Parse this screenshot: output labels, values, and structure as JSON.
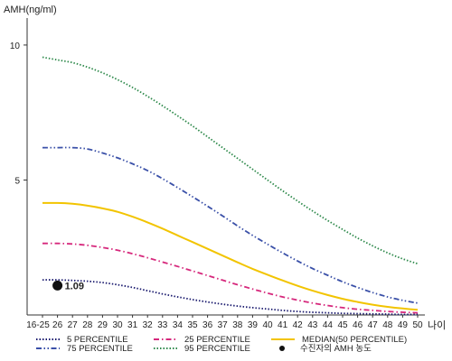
{
  "chart_data": {
    "type": "line",
    "title": "",
    "ylabel": "AMH(ng/ml)",
    "xlabel": "나이",
    "categories": [
      "16-25",
      "26",
      "27",
      "28",
      "29",
      "30",
      "31",
      "32",
      "33",
      "34",
      "35",
      "36",
      "37",
      "38",
      "39",
      "40",
      "41",
      "42",
      "43",
      "44",
      "45",
      "46",
      "47",
      "48",
      "49",
      "50"
    ],
    "ylim": [
      0,
      11
    ],
    "yticks": [
      5,
      10
    ],
    "grid": false,
    "legend_position": "bottom",
    "series": [
      {
        "name": "5 PERCENTILE",
        "color": "#1a1a6e",
        "dash": "dotted",
        "values": [
          1.3,
          1.3,
          1.28,
          1.25,
          1.2,
          1.12,
          1.02,
          0.9,
          0.78,
          0.67,
          0.57,
          0.48,
          0.4,
          0.33,
          0.27,
          0.22,
          0.17,
          0.13,
          0.1,
          0.08,
          0.06,
          0.05,
          0.04,
          0.03,
          0.02,
          0.02
        ]
      },
      {
        "name": "25 PERCENTILE",
        "color": "#d6287c",
        "dash": "dashdot",
        "values": [
          2.65,
          2.65,
          2.63,
          2.58,
          2.5,
          2.4,
          2.27,
          2.12,
          1.96,
          1.8,
          1.63,
          1.46,
          1.29,
          1.12,
          0.96,
          0.81,
          0.67,
          0.55,
          0.44,
          0.35,
          0.27,
          0.21,
          0.17,
          0.13,
          0.1,
          0.08
        ]
      },
      {
        "name": "MEDIAN(50 PERCENTILE)",
        "color": "#f2c400",
        "dash": "solid",
        "values": [
          4.15,
          4.15,
          4.12,
          4.05,
          3.95,
          3.82,
          3.64,
          3.43,
          3.2,
          2.95,
          2.7,
          2.45,
          2.2,
          1.95,
          1.71,
          1.49,
          1.28,
          1.08,
          0.9,
          0.74,
          0.6,
          0.48,
          0.38,
          0.3,
          0.24,
          0.19
        ]
      },
      {
        "name": "75 PERCENTILE",
        "color": "#3a50a8",
        "dash": "dashdotdot",
        "values": [
          6.2,
          6.2,
          6.2,
          6.15,
          6.0,
          5.82,
          5.6,
          5.35,
          5.05,
          4.72,
          4.38,
          4.03,
          3.67,
          3.3,
          2.95,
          2.62,
          2.3,
          2.0,
          1.72,
          1.47,
          1.23,
          1.02,
          0.83,
          0.67,
          0.54,
          0.44
        ]
      },
      {
        "name": "95 PERCENTILE",
        "color": "#2f8a4c",
        "dash": "dotted",
        "values": [
          9.55,
          9.45,
          9.35,
          9.18,
          8.97,
          8.72,
          8.43,
          8.1,
          7.75,
          7.38,
          7.0,
          6.6,
          6.2,
          5.8,
          5.4,
          5.0,
          4.6,
          4.22,
          3.85,
          3.5,
          3.17,
          2.85,
          2.56,
          2.3,
          2.08,
          1.9
        ]
      }
    ],
    "marker": {
      "name": "수진자의 AMH 농도",
      "category": "26",
      "value": 1.09,
      "label": "1.09"
    }
  }
}
